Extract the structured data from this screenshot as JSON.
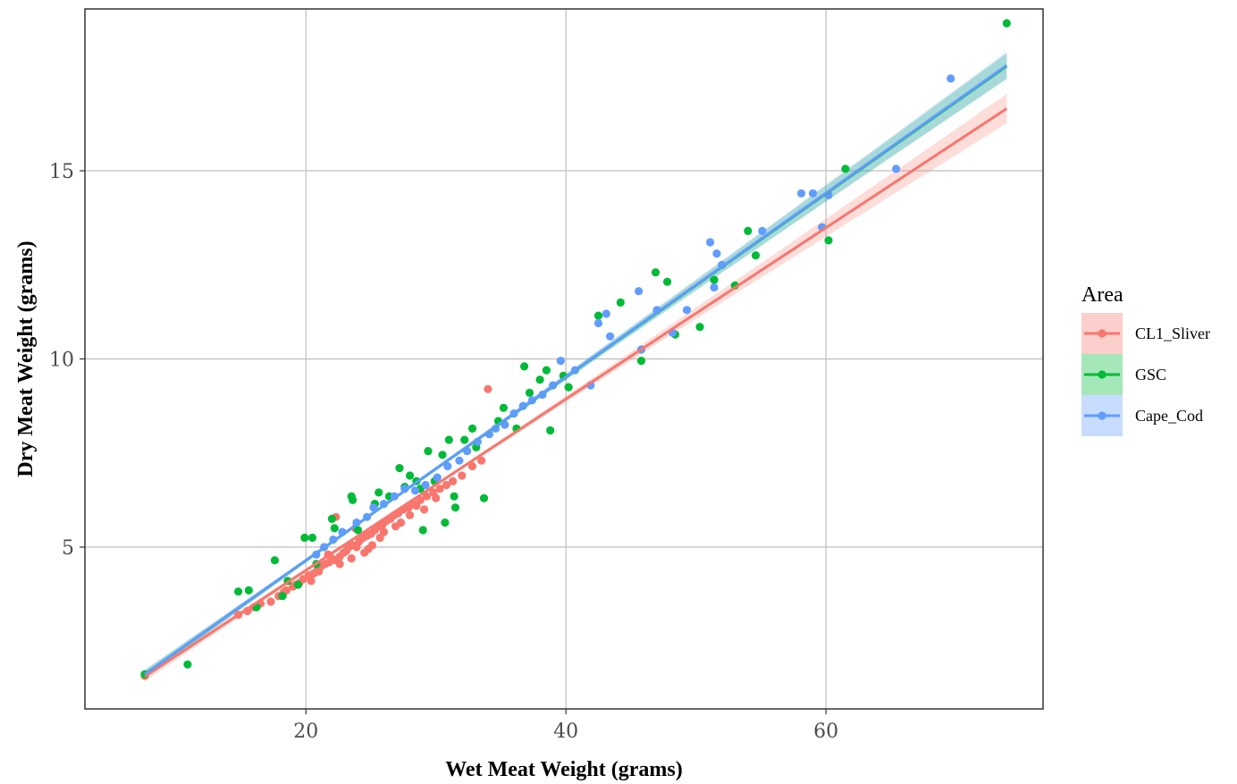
{
  "chart_data": {
    "type": "scatter",
    "xlabel": "Wet Meat Weight (grams)",
    "ylabel": "Dry Meat Weight (grams)",
    "xlim": [
      3.0,
      76.7
    ],
    "ylim": [
      0.7,
      19.3
    ],
    "x_ticks": [
      20,
      40,
      60
    ],
    "y_ticks": [
      5,
      10,
      15
    ],
    "grid": true,
    "legend": {
      "title": "Area",
      "position": "right"
    },
    "series": [
      {
        "name": "CL1_Sliver",
        "color": "#F8766D",
        "fit": {
          "x": [
            7.6,
            73.9
          ],
          "y": [
            1.56,
            16.65
          ],
          "band": 0.35
        },
        "points": [
          [
            7.6,
            1.58
          ],
          [
            14.8,
            3.2
          ],
          [
            15.5,
            3.3
          ],
          [
            16.5,
            3.5
          ],
          [
            17.3,
            3.55
          ],
          [
            17.9,
            3.7
          ],
          [
            18.5,
            3.85
          ],
          [
            19.0,
            3.95
          ],
          [
            19.5,
            4.05
          ],
          [
            19.8,
            4.15
          ],
          [
            20.2,
            4.25
          ],
          [
            20.6,
            4.3
          ],
          [
            20.9,
            4.4
          ],
          [
            21.2,
            4.5
          ],
          [
            21.5,
            4.55
          ],
          [
            21.8,
            4.6
          ],
          [
            22.0,
            4.7
          ],
          [
            22.3,
            4.65
          ],
          [
            22.6,
            4.75
          ],
          [
            22.9,
            4.85
          ],
          [
            23.1,
            4.9
          ],
          [
            23.3,
            5.0
          ],
          [
            23.6,
            5.05
          ],
          [
            23.9,
            5.0
          ],
          [
            24.1,
            5.15
          ],
          [
            24.4,
            5.25
          ],
          [
            24.7,
            5.3
          ],
          [
            25.0,
            5.35
          ],
          [
            25.3,
            5.45
          ],
          [
            25.6,
            5.55
          ],
          [
            25.9,
            5.6
          ],
          [
            26.2,
            5.7
          ],
          [
            26.5,
            5.75
          ],
          [
            26.8,
            5.85
          ],
          [
            27.1,
            5.9
          ],
          [
            27.5,
            6.0
          ],
          [
            27.9,
            6.05
          ],
          [
            28.3,
            6.15
          ],
          [
            28.8,
            6.25
          ],
          [
            29.3,
            6.35
          ],
          [
            29.8,
            6.45
          ],
          [
            30.3,
            6.55
          ],
          [
            30.8,
            6.65
          ],
          [
            31.3,
            6.75
          ],
          [
            32.0,
            6.9
          ],
          [
            32.8,
            7.15
          ],
          [
            33.5,
            7.3
          ],
          [
            22.3,
            5.8
          ],
          [
            34.0,
            9.2
          ],
          [
            21.7,
            4.8
          ],
          [
            23.5,
            4.7
          ],
          [
            24.8,
            4.95
          ],
          [
            26.0,
            5.4
          ],
          [
            27.3,
            5.65
          ],
          [
            28.5,
            6.1
          ],
          [
            30.0,
            6.3
          ],
          [
            22.6,
            4.55
          ],
          [
            23.8,
            5.5
          ],
          [
            25.1,
            5.05
          ],
          [
            21.0,
            4.35
          ],
          [
            20.4,
            4.1
          ],
          [
            19.2,
            4.0
          ],
          [
            18.3,
            3.8
          ],
          [
            16.0,
            3.4
          ],
          [
            24.5,
            4.85
          ],
          [
            25.7,
            5.25
          ],
          [
            26.9,
            5.55
          ],
          [
            28.0,
            5.85
          ],
          [
            29.1,
            6.0
          ]
        ]
      },
      {
        "name": "GSC",
        "color": "#00BA38",
        "fit": {
          "x": [
            7.6,
            73.9
          ],
          "y": [
            1.62,
            17.78
          ],
          "band": 0.3
        },
        "points": [
          [
            7.6,
            1.62
          ],
          [
            10.9,
            1.88
          ],
          [
            14.8,
            3.82
          ],
          [
            15.6,
            3.85
          ],
          [
            16.2,
            3.4
          ],
          [
            17.6,
            4.65
          ],
          [
            18.2,
            3.7
          ],
          [
            18.6,
            4.1
          ],
          [
            19.4,
            4.0
          ],
          [
            19.9,
            5.25
          ],
          [
            20.5,
            5.25
          ],
          [
            20.8,
            4.55
          ],
          [
            22.0,
            5.75
          ],
          [
            22.2,
            5.5
          ],
          [
            23.5,
            6.35
          ],
          [
            23.6,
            6.25
          ],
          [
            24.0,
            5.45
          ],
          [
            25.3,
            6.15
          ],
          [
            25.6,
            6.45
          ],
          [
            26.4,
            6.35
          ],
          [
            27.2,
            7.1
          ],
          [
            27.6,
            6.6
          ],
          [
            28.0,
            6.9
          ],
          [
            28.5,
            6.75
          ],
          [
            28.8,
            6.55
          ],
          [
            29.0,
            5.45
          ],
          [
            29.4,
            7.55
          ],
          [
            29.9,
            6.75
          ],
          [
            30.5,
            7.45
          ],
          [
            30.7,
            5.65
          ],
          [
            31.0,
            7.85
          ],
          [
            31.4,
            6.35
          ],
          [
            31.5,
            6.05
          ],
          [
            32.2,
            7.85
          ],
          [
            32.8,
            8.15
          ],
          [
            33.1,
            7.65
          ],
          [
            33.7,
            6.3
          ],
          [
            34.8,
            8.35
          ],
          [
            35.2,
            8.7
          ],
          [
            36.2,
            8.15
          ],
          [
            36.8,
            9.8
          ],
          [
            37.2,
            9.1
          ],
          [
            38.0,
            9.45
          ],
          [
            38.5,
            9.7
          ],
          [
            38.8,
            8.1
          ],
          [
            39.8,
            9.55
          ],
          [
            40.2,
            9.25
          ],
          [
            42.5,
            11.15
          ],
          [
            44.2,
            11.5
          ],
          [
            45.8,
            9.95
          ],
          [
            46.9,
            12.3
          ],
          [
            47.8,
            12.05
          ],
          [
            48.4,
            10.65
          ],
          [
            50.3,
            10.85
          ],
          [
            51.4,
            12.1
          ],
          [
            53.0,
            11.95
          ],
          [
            54.0,
            13.4
          ],
          [
            54.6,
            12.75
          ],
          [
            60.2,
            13.15
          ],
          [
            61.5,
            15.05
          ],
          [
            73.9,
            18.92
          ]
        ]
      },
      {
        "name": "Cape_Cod",
        "color": "#619CFF",
        "fit": {
          "x": [
            7.6,
            73.9
          ],
          "y": [
            1.62,
            17.8
          ],
          "band": 0.32
        },
        "points": [
          [
            20.8,
            4.8
          ],
          [
            21.4,
            5.0
          ],
          [
            22.1,
            5.2
          ],
          [
            22.8,
            5.4
          ],
          [
            23.9,
            5.65
          ],
          [
            24.7,
            5.8
          ],
          [
            25.2,
            6.05
          ],
          [
            26.0,
            6.15
          ],
          [
            26.8,
            6.35
          ],
          [
            27.6,
            6.55
          ],
          [
            28.4,
            6.5
          ],
          [
            29.2,
            6.65
          ],
          [
            30.1,
            6.85
          ],
          [
            30.9,
            7.15
          ],
          [
            31.8,
            7.3
          ],
          [
            32.4,
            7.55
          ],
          [
            33.2,
            7.8
          ],
          [
            34.1,
            8.0
          ],
          [
            34.6,
            8.15
          ],
          [
            35.3,
            8.25
          ],
          [
            36.0,
            8.55
          ],
          [
            36.7,
            8.75
          ],
          [
            37.4,
            8.9
          ],
          [
            38.2,
            9.05
          ],
          [
            39.0,
            9.3
          ],
          [
            39.6,
            9.95
          ],
          [
            40.7,
            9.7
          ],
          [
            41.9,
            9.3
          ],
          [
            42.5,
            10.95
          ],
          [
            43.1,
            11.2
          ],
          [
            43.4,
            10.6
          ],
          [
            45.6,
            11.8
          ],
          [
            45.8,
            10.25
          ],
          [
            47.0,
            11.3
          ],
          [
            48.2,
            10.7
          ],
          [
            49.3,
            11.3
          ],
          [
            51.1,
            13.1
          ],
          [
            51.6,
            12.8
          ],
          [
            51.4,
            11.9
          ],
          [
            52.0,
            12.5
          ],
          [
            55.1,
            13.4
          ],
          [
            58.1,
            14.4
          ],
          [
            59.0,
            14.4
          ],
          [
            59.7,
            13.5
          ],
          [
            60.2,
            14.35
          ],
          [
            65.4,
            15.05
          ],
          [
            69.6,
            17.45
          ]
        ]
      }
    ]
  }
}
